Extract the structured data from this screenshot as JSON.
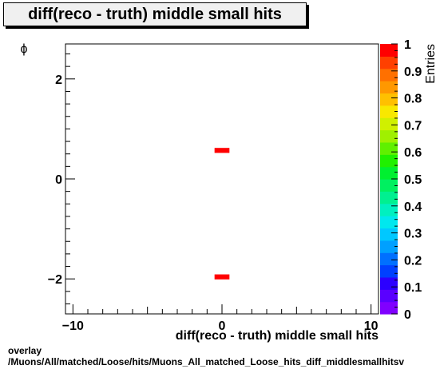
{
  "chart_data": {
    "type": "heatmap",
    "title": "diff(reco - truth) middle small hits",
    "xlabel": "diff(reco - truth) middle small hits",
    "ylabel": "ϕ",
    "zlabel": "Entries",
    "xlim": [
      -10.5,
      10.5
    ],
    "ylim": [
      -2.7,
      2.7
    ],
    "zlim": [
      0,
      1
    ],
    "x_ticks": [
      -10,
      0,
      10
    ],
    "x_tick_labels": [
      "−10",
      "0",
      "10"
    ],
    "y_ticks": [
      -2,
      0,
      2
    ],
    "y_tick_labels": [
      "−2",
      "0",
      "2"
    ],
    "z_ticks": [
      0,
      0.1,
      0.2,
      0.3,
      0.4,
      0.5,
      0.6,
      0.7,
      0.8,
      0.9,
      1
    ],
    "z_tick_labels": [
      "0",
      "0.1",
      "0.2",
      "0.3",
      "0.4",
      "0.5",
      "0.6",
      "0.7",
      "0.8",
      "0.9",
      "1"
    ],
    "cells": [
      {
        "x": 0,
        "y": 0.57,
        "value": 1
      },
      {
        "x": 0,
        "y": -1.96,
        "value": 1
      }
    ],
    "bin_width": [
      1.0,
      0.1
    ],
    "color_max": "#ff0000"
  },
  "footer": {
    "line1": "overlay",
    "line2": "/Muons/All/matched/Loose/hits/Muons_All_matched_Loose_hits_diff_middlesmallhitsv"
  }
}
